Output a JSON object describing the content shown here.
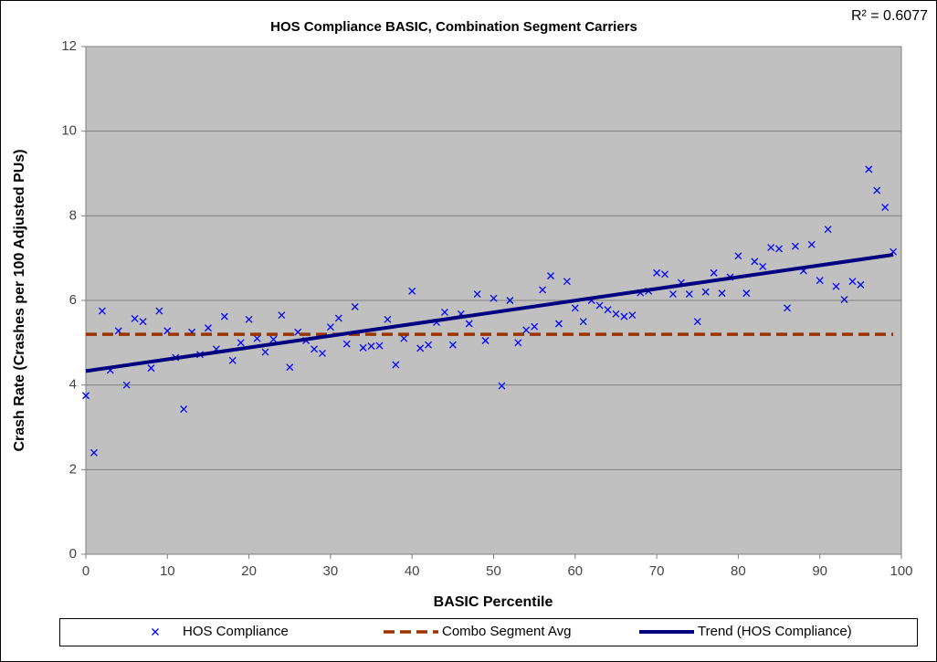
{
  "chart_data": {
    "type": "scatter",
    "title": "HOS Compliance BASIC, Combination Segment Carriers",
    "annotation": "R² = 0.6077",
    "x_label": "BASIC Percentile",
    "y_label": "Crash Rate (Crashes per 100 Adjusted PUs)",
    "xlim": [
      0,
      100
    ],
    "ylim": [
      0,
      12
    ],
    "xticks": [
      0,
      10,
      20,
      30,
      40,
      50,
      60,
      70,
      80,
      90,
      100
    ],
    "yticks": [
      0,
      2,
      4,
      6,
      8,
      10,
      12
    ],
    "grid": true,
    "legend": "bottom",
    "series": [
      {
        "name": "HOS Compliance",
        "type": "scatter",
        "color": "#0000ff",
        "x": [
          0,
          1,
          2,
          3,
          4,
          5,
          6,
          7,
          8,
          9,
          10,
          11,
          12,
          13,
          14,
          15,
          16,
          17,
          18,
          19,
          20,
          21,
          22,
          23,
          24,
          25,
          26,
          27,
          28,
          29,
          30,
          31,
          32,
          33,
          34,
          35,
          36,
          37,
          38,
          39,
          40,
          41,
          42,
          43,
          44,
          45,
          46,
          47,
          48,
          49,
          50,
          51,
          52,
          53,
          54,
          55,
          56,
          57,
          58,
          59,
          60,
          61,
          62,
          63,
          64,
          65,
          66,
          67,
          68,
          69,
          70,
          71,
          72,
          73,
          74,
          75,
          76,
          77,
          78,
          79,
          80,
          81,
          82,
          83,
          84,
          85,
          86,
          87,
          88,
          89,
          90,
          91,
          92,
          93,
          94,
          95,
          96,
          97,
          98,
          99
        ],
        "values": [
          3.75,
          2.4,
          5.75,
          4.35,
          5.28,
          4.0,
          5.57,
          5.5,
          4.4,
          5.75,
          5.28,
          4.65,
          3.43,
          5.25,
          4.72,
          5.35,
          4.85,
          5.62,
          4.58,
          5.0,
          5.55,
          5.1,
          4.78,
          5.08,
          5.65,
          4.42,
          5.25,
          5.05,
          4.85,
          4.75,
          5.37,
          5.58,
          4.97,
          5.85,
          4.88,
          4.92,
          4.93,
          5.55,
          4.48,
          5.1,
          6.22,
          4.87,
          4.95,
          5.48,
          5.72,
          4.95,
          5.68,
          5.45,
          6.15,
          5.05,
          6.05,
          3.98,
          6.0,
          5.0,
          5.3,
          5.38,
          6.25,
          6.58,
          5.45,
          6.45,
          5.82,
          5.5,
          6.0,
          5.88,
          5.78,
          5.68,
          5.62,
          5.65,
          6.18,
          6.22,
          6.65,
          6.62,
          6.15,
          6.42,
          6.15,
          5.5,
          6.2,
          6.65,
          6.17,
          6.55,
          7.05,
          6.17,
          6.92,
          6.8,
          7.25,
          7.22,
          5.82,
          7.28,
          6.7,
          7.32,
          6.47,
          7.68,
          6.33,
          6.02,
          6.45,
          6.37,
          9.1,
          8.6,
          8.2,
          7.15
        ]
      },
      {
        "name": "Combo Segment Avg",
        "type": "line",
        "dash": true,
        "color": "#993300",
        "x": [
          0,
          99
        ],
        "values": [
          5.2,
          5.2
        ]
      },
      {
        "name": "Trend (HOS Compliance)",
        "type": "line",
        "dash": false,
        "color": "#000080",
        "x": [
          0,
          99
        ],
        "values": [
          4.33,
          7.08
        ]
      }
    ]
  }
}
